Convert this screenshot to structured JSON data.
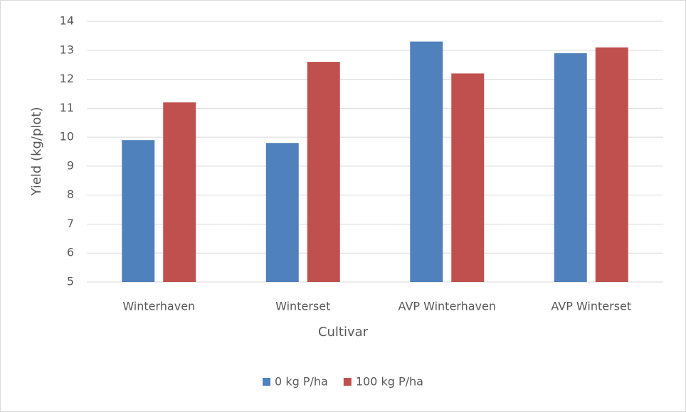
{
  "chart_data": {
    "type": "bar",
    "x_label": "Cultivar",
    "y_label": "Yield  (kg/plot)",
    "categories": [
      "Winterhaven",
      "Winterset",
      "AVP Winterhaven",
      "AVP Winterset"
    ],
    "series": [
      {
        "name": "0 kg P/ha",
        "color": "#4f81bd",
        "values": [
          9.9,
          9.8,
          13.3,
          12.9
        ]
      },
      {
        "name": "100 kg P/ha",
        "color": "#c0504d",
        "values": [
          11.2,
          12.6,
          12.2,
          13.1
        ]
      }
    ],
    "ylim": [
      5,
      14
    ],
    "yticks": [
      5,
      6,
      7,
      8,
      9,
      10,
      11,
      12,
      13,
      14
    ],
    "grid": true,
    "legend": "bottom"
  }
}
